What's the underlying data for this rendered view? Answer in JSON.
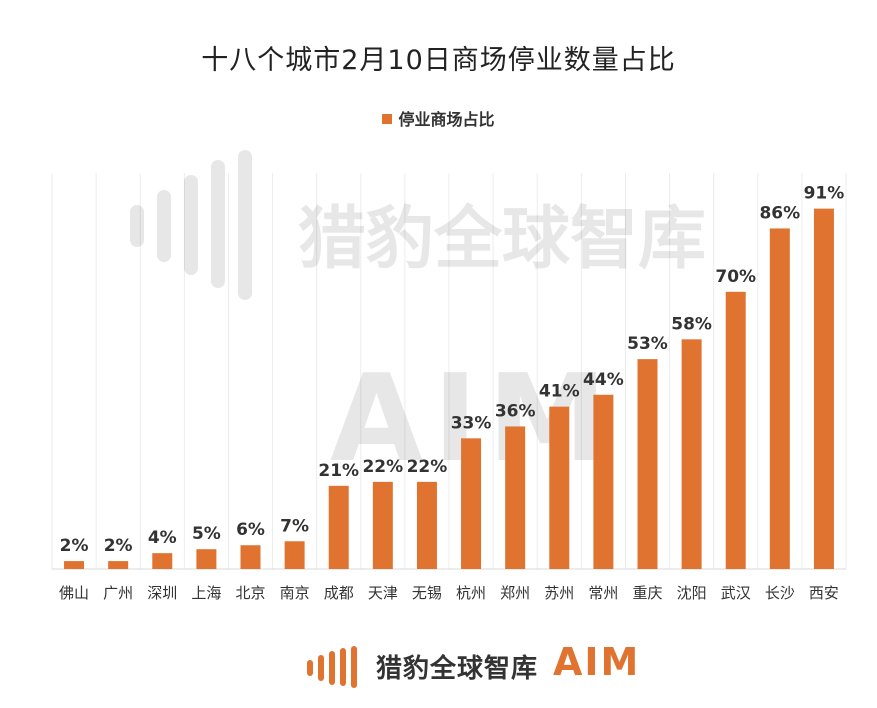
{
  "chart_data": {
    "type": "bar",
    "title": "十八个城市2月10日商场停业数量占比",
    "categories": [
      "佛山",
      "广州",
      "深圳",
      "上海",
      "北京",
      "南京",
      "成都",
      "天津",
      "无锡",
      "杭州",
      "郑州",
      "苏州",
      "常州",
      "重庆",
      "沈阳",
      "武汉",
      "长沙",
      "西安"
    ],
    "series": [
      {
        "name": "停业商场占比",
        "values": [
          2,
          2,
          4,
          5,
          6,
          7,
          21,
          22,
          22,
          33,
          36,
          41,
          44,
          53,
          58,
          70,
          86,
          91
        ],
        "data_labels": [
          "2%",
          "2%",
          "4%",
          "5%",
          "6%",
          "7%",
          "21%",
          "22%",
          "22%",
          "33%",
          "36%",
          "41%",
          "44%",
          "53%",
          "58%",
          "70%",
          "86%",
          "91%"
        ]
      }
    ],
    "ylim": [
      0,
      100
    ],
    "grid": "vertical-lines",
    "legend_placement": "top",
    "bar_color": "#e07330"
  },
  "watermark": {
    "brand_text": "猎豹全球智库",
    "aim_text": "AIM"
  },
  "footer": {
    "brand_text": "猎豹全球智库",
    "aim_text": "AIM",
    "accent_color": "#e07330"
  }
}
